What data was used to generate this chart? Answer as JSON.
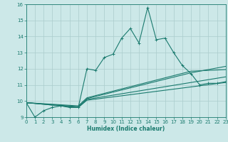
{
  "bg_color": "#cce8e8",
  "grid_color": "#aacccc",
  "line_color": "#1a7a6e",
  "xlabel": "Humidex (Indice chaleur)",
  "xlim": [
    0,
    23
  ],
  "ylim": [
    9,
    16
  ],
  "yticks": [
    9,
    10,
    11,
    12,
    13,
    14,
    15,
    16
  ],
  "xticks": [
    0,
    1,
    2,
    3,
    4,
    5,
    6,
    7,
    8,
    9,
    10,
    11,
    12,
    13,
    14,
    15,
    16,
    17,
    18,
    19,
    20,
    21,
    22,
    23
  ],
  "main_line_x": [
    0,
    1,
    2,
    3,
    4,
    5,
    6,
    7,
    8,
    9,
    10,
    11,
    12,
    13,
    14,
    15,
    16,
    17,
    18,
    19,
    20,
    21,
    22,
    23
  ],
  "main_line_y": [
    9.9,
    9.0,
    9.4,
    9.6,
    9.7,
    9.6,
    9.6,
    12.0,
    11.9,
    12.7,
    12.9,
    13.9,
    14.5,
    13.6,
    15.8,
    13.8,
    13.9,
    13.0,
    12.2,
    11.7,
    11.0,
    11.1,
    11.1,
    11.2
  ],
  "smooth_lines": [
    {
      "x": [
        0,
        6,
        7,
        23
      ],
      "y": [
        9.9,
        9.6,
        10.05,
        11.15
      ]
    },
    {
      "x": [
        0,
        6,
        7,
        23
      ],
      "y": [
        9.9,
        9.6,
        10.1,
        11.5
      ]
    },
    {
      "x": [
        0,
        6,
        7,
        19,
        23
      ],
      "y": [
        9.9,
        9.65,
        10.15,
        11.75,
        12.15
      ]
    },
    {
      "x": [
        0,
        6,
        7,
        19,
        23
      ],
      "y": [
        9.9,
        9.7,
        10.2,
        11.85,
        11.95
      ]
    }
  ]
}
